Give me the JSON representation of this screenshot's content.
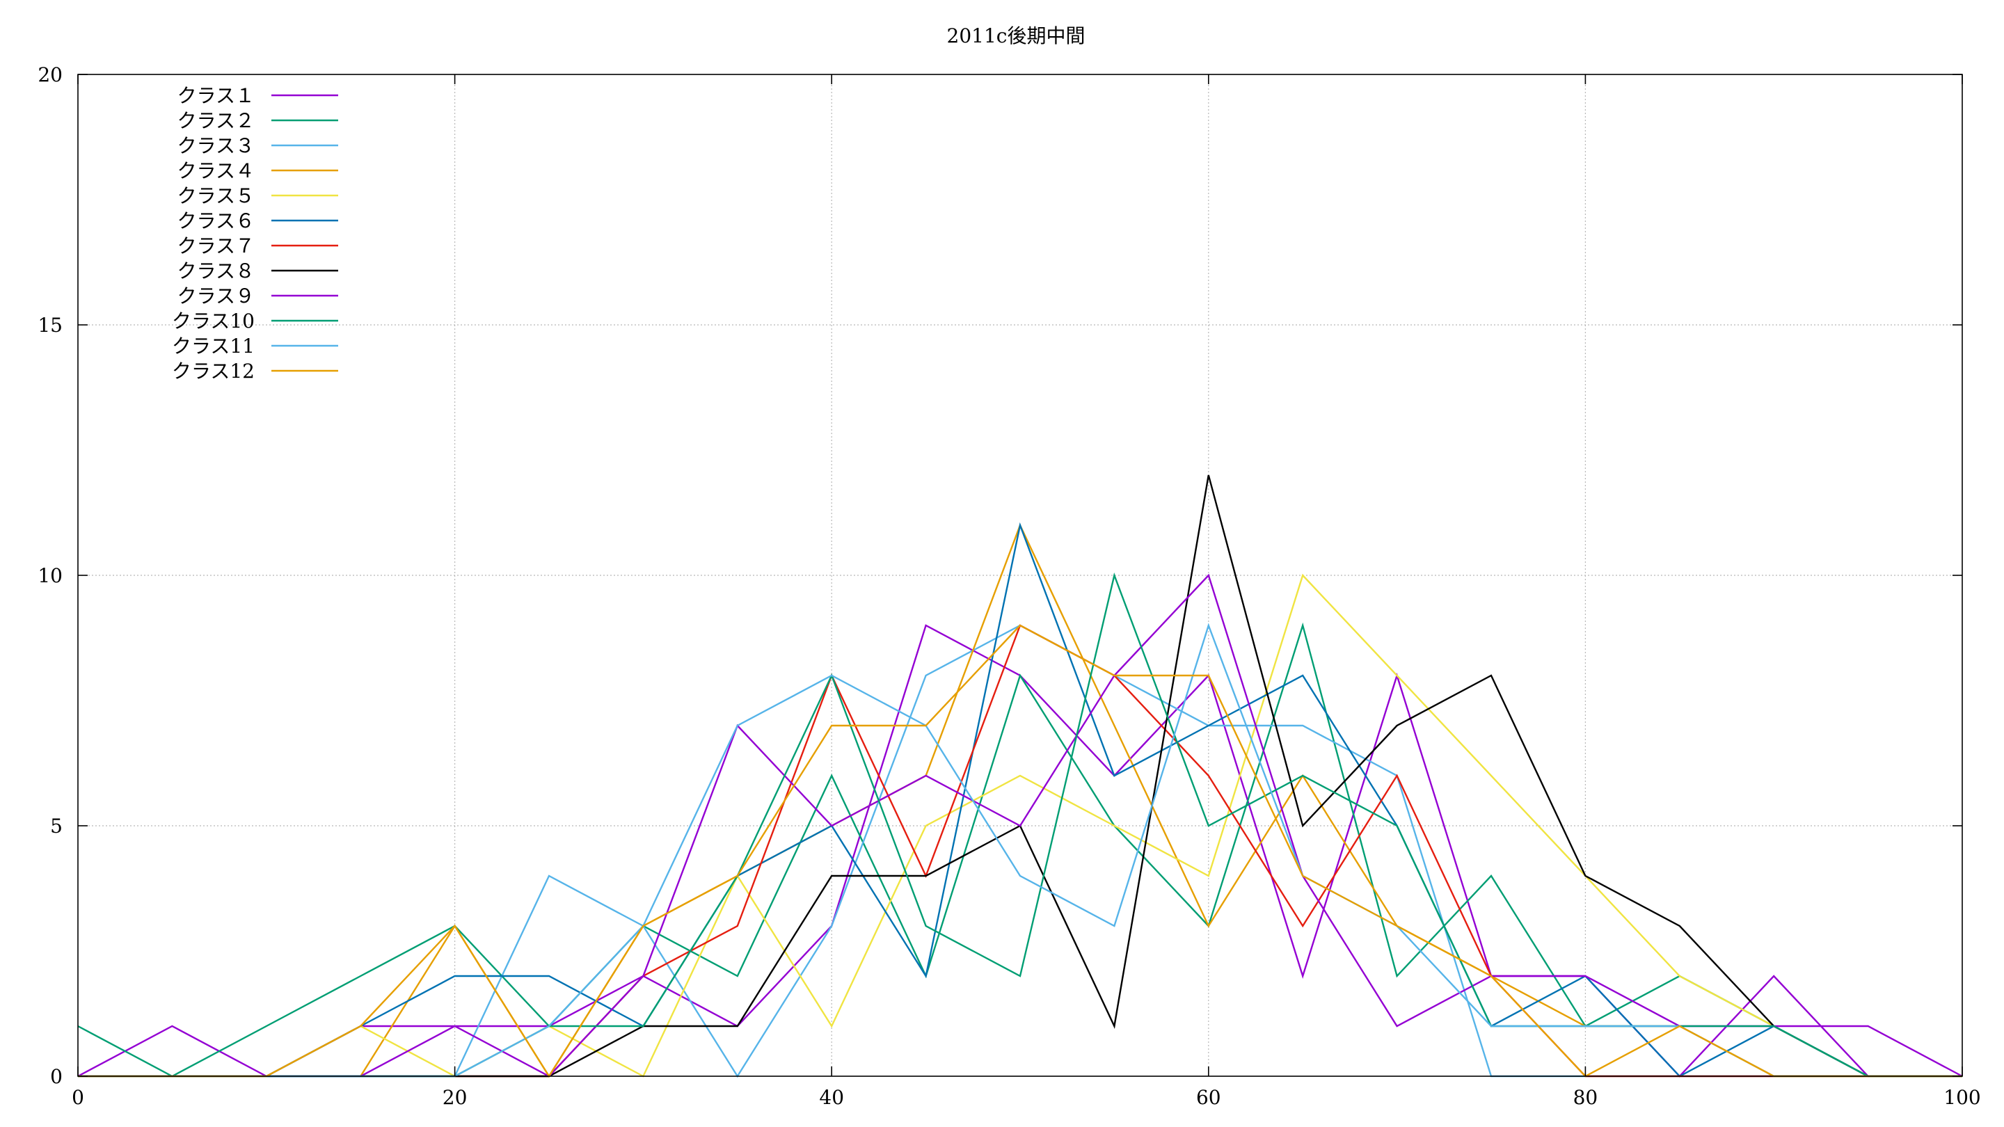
{
  "chart_data": {
    "type": "line",
    "title": "2011c後期中間",
    "xlabel": "",
    "ylabel": "",
    "xlim": [
      0,
      100
    ],
    "ylim": [
      0,
      20
    ],
    "xticks": [
      0,
      20,
      40,
      60,
      80,
      100
    ],
    "yticks": [
      0,
      5,
      10,
      15,
      20
    ],
    "grid": true,
    "legend_position": "top-left",
    "x": [
      0,
      5,
      10,
      15,
      20,
      25,
      30,
      35,
      40,
      45,
      50,
      55,
      60,
      65,
      70,
      75,
      80,
      85,
      90,
      95,
      100
    ],
    "series": [
      {
        "name": "クラス１",
        "color": "#9400d3",
        "values": [
          0,
          1,
          0,
          1,
          1,
          1,
          2,
          1,
          3,
          9,
          8,
          6,
          8,
          2,
          8,
          2,
          2,
          0,
          2,
          0,
          0
        ]
      },
      {
        "name": "クラス２",
        "color": "#009e73",
        "values": [
          1,
          0,
          1,
          2,
          3,
          1,
          3,
          2,
          6,
          2,
          8,
          5,
          3,
          9,
          2,
          4,
          1,
          2,
          1,
          0,
          0
        ]
      },
      {
        "name": "クラス３",
        "color": "#56b4e9",
        "values": [
          0,
          0,
          0,
          0,
          0,
          4,
          3,
          0,
          3,
          8,
          9,
          8,
          7,
          7,
          6,
          0,
          0,
          0,
          0,
          0,
          0
        ]
      },
      {
        "name": "クラス４",
        "color": "#e69f00",
        "values": [
          0,
          0,
          0,
          0,
          3,
          0,
          3,
          4,
          5,
          6,
          11,
          7,
          3,
          6,
          3,
          2,
          1,
          1,
          0,
          0,
          0
        ]
      },
      {
        "name": "クラス５",
        "color": "#f0e442",
        "values": [
          0,
          0,
          0,
          1,
          0,
          1,
          0,
          4,
          1,
          5,
          6,
          5,
          4,
          10,
          8,
          6,
          4,
          2,
          1,
          0,
          0
        ]
      },
      {
        "name": "クラス６",
        "color": "#0072b2",
        "values": [
          0,
          0,
          0,
          1,
          2,
          2,
          1,
          4,
          5,
          2,
          11,
          6,
          7,
          8,
          5,
          1,
          2,
          0,
          1,
          0,
          0
        ]
      },
      {
        "name": "クラス７",
        "color": "#e51e10",
        "values": [
          0,
          0,
          0,
          0,
          0,
          0,
          2,
          3,
          8,
          4,
          9,
          8,
          6,
          3,
          6,
          2,
          0,
          0,
          0,
          0,
          0
        ]
      },
      {
        "name": "クラス８",
        "color": "#000000",
        "values": [
          0,
          0,
          0,
          0,
          0,
          0,
          1,
          1,
          4,
          4,
          5,
          1,
          12,
          5,
          7,
          8,
          4,
          3,
          1,
          0,
          0
        ]
      },
      {
        "name": "クラス９",
        "color": "#9400d3",
        "values": [
          0,
          0,
          0,
          0,
          1,
          0,
          2,
          7,
          5,
          6,
          5,
          8,
          10,
          4,
          1,
          2,
          2,
          1,
          1,
          1,
          0
        ]
      },
      {
        "name": "クラス10",
        "color": "#009e73",
        "values": [
          0,
          0,
          0,
          0,
          0,
          1,
          1,
          4,
          8,
          3,
          2,
          10,
          5,
          6,
          5,
          1,
          1,
          1,
          1,
          0,
          0
        ]
      },
      {
        "name": "クラス11",
        "color": "#56b4e9",
        "values": [
          0,
          0,
          0,
          0,
          0,
          1,
          3,
          7,
          8,
          7,
          4,
          3,
          9,
          4,
          3,
          1,
          1,
          1,
          0,
          0,
          0
        ]
      },
      {
        "name": "クラス12",
        "color": "#e69f00",
        "values": [
          0,
          0,
          0,
          1,
          3,
          0,
          3,
          4,
          7,
          7,
          9,
          8,
          8,
          4,
          3,
          2,
          0,
          1,
          0,
          0,
          0
        ]
      }
    ]
  }
}
